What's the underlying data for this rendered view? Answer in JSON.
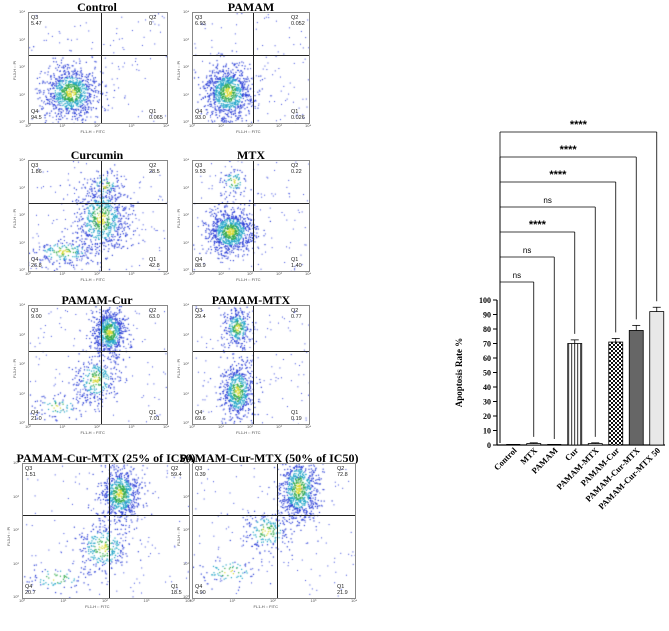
{
  "flow_panels": [
    {
      "title": "Control",
      "q3": "5.47",
      "q2": "0",
      "q4": "94.5",
      "q1": "0.065",
      "ylabel": "FL3-H :: PI",
      "xlabel": "FL1-H :: FITC",
      "pattern": "low"
    },
    {
      "title": "PAMAM",
      "q3": "6.93",
      "q2": "0.052",
      "q4": "93.0",
      "q1": "0.026",
      "ylabel": "FL3-H :: PI",
      "xlabel": "FL1-H :: FITC",
      "pattern": "low"
    },
    {
      "title": "Curcumin",
      "q3": "1.86",
      "q2": "28.5",
      "q4": "26.8",
      "q1": "42.8",
      "ylabel": "FL3-H :: PI",
      "xlabel": "FL1-H :: FITC",
      "pattern": "mid"
    },
    {
      "title": "MTX",
      "q3": "9.53",
      "q2": "0.22",
      "q4": "88.9",
      "q1": "1.40",
      "ylabel": "FL3-H :: PI",
      "xlabel": "FL1-H :: FITC",
      "pattern": "low2"
    },
    {
      "title": "PAMAM-Cur",
      "q3": "9.00",
      "q2": "63.0",
      "q4": "21.0",
      "q1": "7.01",
      "ylabel": "FL3-H :: PI",
      "xlabel": "FL1-H :: FITC",
      "pattern": "high"
    },
    {
      "title": "PAMAM-MTX",
      "q3": "29.4",
      "q2": "0.77",
      "q4": "69.6",
      "q1": "0.19",
      "ylabel": "FL3-H :: PI",
      "xlabel": "FL1-H :: FITC",
      "pattern": "split"
    },
    {
      "title": "PAMAM-Cur-MTX (25% of IC50)",
      "q3": "1.51",
      "q2": "59.4",
      "q4": "20.7",
      "q1": "18.5",
      "ylabel": "FL3-H :: PI",
      "xlabel": "FL1-H :: FITC",
      "pattern": "high"
    },
    {
      "title": "PAMAM-Cur-MTX (50% of IC50)",
      "q3": "0.39",
      "q2": "72.8",
      "q4": "4.90",
      "q1": "21.9",
      "ylabel": "FL3-H :: PI",
      "xlabel": "FL1-H :: FITC",
      "pattern": "veryhigh"
    }
  ],
  "tick_labels": [
    "10⁰",
    "10¹",
    "10²",
    "10³",
    "10⁴"
  ],
  "chart_data": {
    "type": "bar",
    "title": "",
    "ylabel": "Apoptosis Rate %",
    "xlabel": "",
    "ylim": [
      0,
      100
    ],
    "yticks": [
      "0",
      "10",
      "20",
      "30",
      "40",
      "50",
      "60",
      "70",
      "80",
      "90",
      "100"
    ],
    "categories": [
      "Control",
      "MTX",
      "PAMAM",
      "Cur",
      "PAMAM-MTX",
      "PAMAM-Cur",
      "PAMAM-Cur-MTX",
      "PAMAM-Cur-MTX 50"
    ],
    "values": [
      0,
      1,
      0,
      70,
      1,
      71,
      79,
      92
    ],
    "errors": [
      0,
      0.5,
      0,
      2.5,
      0.5,
      2.5,
      3.5,
      3
    ],
    "fills": [
      "white",
      "white",
      "white",
      "vstripes",
      "white",
      "checker",
      "#666666",
      "#e8e8e8"
    ],
    "comparisons": [
      {
        "label": "ns",
        "target": "MTX"
      },
      {
        "label": "ns",
        "target": "PAMAM"
      },
      {
        "label": "****",
        "target": "Cur"
      },
      {
        "label": "ns",
        "target": "PAMAM-MTX"
      },
      {
        "label": "****",
        "target": "PAMAM-Cur"
      },
      {
        "label": "****",
        "target": "PAMAM-Cur-MTX"
      },
      {
        "label": "****",
        "target": "PAMAM-Cur-MTX 50"
      }
    ]
  }
}
